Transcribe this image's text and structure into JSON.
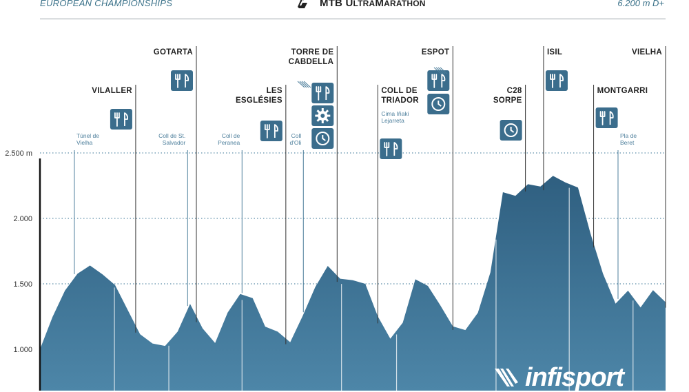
{
  "header": {
    "left": "EUROPEAN CHAMPIONSHIPS",
    "title_main": "MTB ",
    "title_u": "U",
    "title_ltra": "LTRA",
    "title_m": "M",
    "title_arathon": "ARATHON",
    "right": "6.200 m D+"
  },
  "watermark": "infisport",
  "chart_data": {
    "type": "area",
    "title": "",
    "xlabel": "",
    "ylabel": "",
    "ylim": [
      700,
      2750
    ],
    "y_ticks": [
      {
        "value": 2500,
        "label": "2.500 m"
      },
      {
        "value": 2000,
        "label": "2.000"
      },
      {
        "value": 1500,
        "label": "1.500"
      },
      {
        "value": 1000,
        "label": "1.000"
      }
    ],
    "grid": "dotted-horizontal",
    "fill_color": "#3b6d8c",
    "accent_color": "#4c7e9b",
    "x": [
      0,
      2,
      4,
      6,
      8,
      10,
      12,
      14,
      16,
      18,
      20,
      22,
      24,
      26,
      28,
      30,
      32,
      34,
      36,
      38,
      40,
      42,
      44,
      46,
      48,
      50,
      52,
      54,
      56,
      58,
      60,
      62,
      64,
      66,
      68,
      70,
      72,
      74,
      76,
      78,
      80,
      82,
      84,
      86,
      88,
      90,
      92,
      94,
      96,
      98,
      100
    ],
    "elevation": [
      1000,
      1250,
      1440,
      1590,
      1640,
      1560,
      1500,
      1300,
      1100,
      1050,
      1020,
      1150,
      1350,
      1150,
      1060,
      1280,
      1410,
      1400,
      1170,
      1120,
      1060,
      1250,
      1490,
      1640,
      1530,
      1540,
      1500,
      1240,
      1090,
      1200,
      1520,
      1490,
      1330,
      1190,
      1150,
      1270,
      1600,
      2200,
      2160,
      2270,
      2240,
      2310,
      2280,
      2230,
      1900,
      1580,
      1340,
      1460,
      1320,
      1440,
      1360
    ],
    "waypoints": [
      {
        "name": "VILALLER",
        "x": 15.3,
        "icons": [
          "fork-knife"
        ]
      },
      {
        "name": "GOTARTA",
        "x": 25.0,
        "icons": [
          "fork-knife"
        ]
      },
      {
        "name": "LES\nESGLÉSIES",
        "x": 39.3,
        "icons": [
          "fork-knife"
        ]
      },
      {
        "name": "TORRE DE\nCABDELLA",
        "x": 47.5,
        "icons": [
          "fork-knife",
          "gear",
          "clock"
        ]
      },
      {
        "name": "COLL DE\nTRIADOR",
        "x": 54.0,
        "subtitle": "Cima Iñaki\nLejarreta",
        "icons": [
          "fork-knife"
        ]
      },
      {
        "name": "ESPOT",
        "x": 66.0,
        "icons": [
          "fork-knife",
          "clock"
        ]
      },
      {
        "name": "C28\nSORPE",
        "x": 77.6,
        "icons": [
          "clock"
        ]
      },
      {
        "name": "ISIL",
        "x": 80.5,
        "icons": [
          "fork-knife"
        ]
      },
      {
        "name": "MONTGARRI",
        "x": 88.5,
        "icons": [
          "fork-knife"
        ]
      },
      {
        "name": "VIELHA",
        "x": 100,
        "icons": []
      }
    ],
    "passes": [
      {
        "name": "Túnel de\nVielha",
        "x": 5.5
      },
      {
        "name": "Coll de St.\nSalvador",
        "x": 23.6
      },
      {
        "name": "Coll de\nPeranea",
        "x": 32.3
      },
      {
        "name": "Coll\nd'Oli",
        "x": 42.1
      },
      {
        "name": "Pla de\nBeret",
        "x": 92.4
      }
    ]
  }
}
